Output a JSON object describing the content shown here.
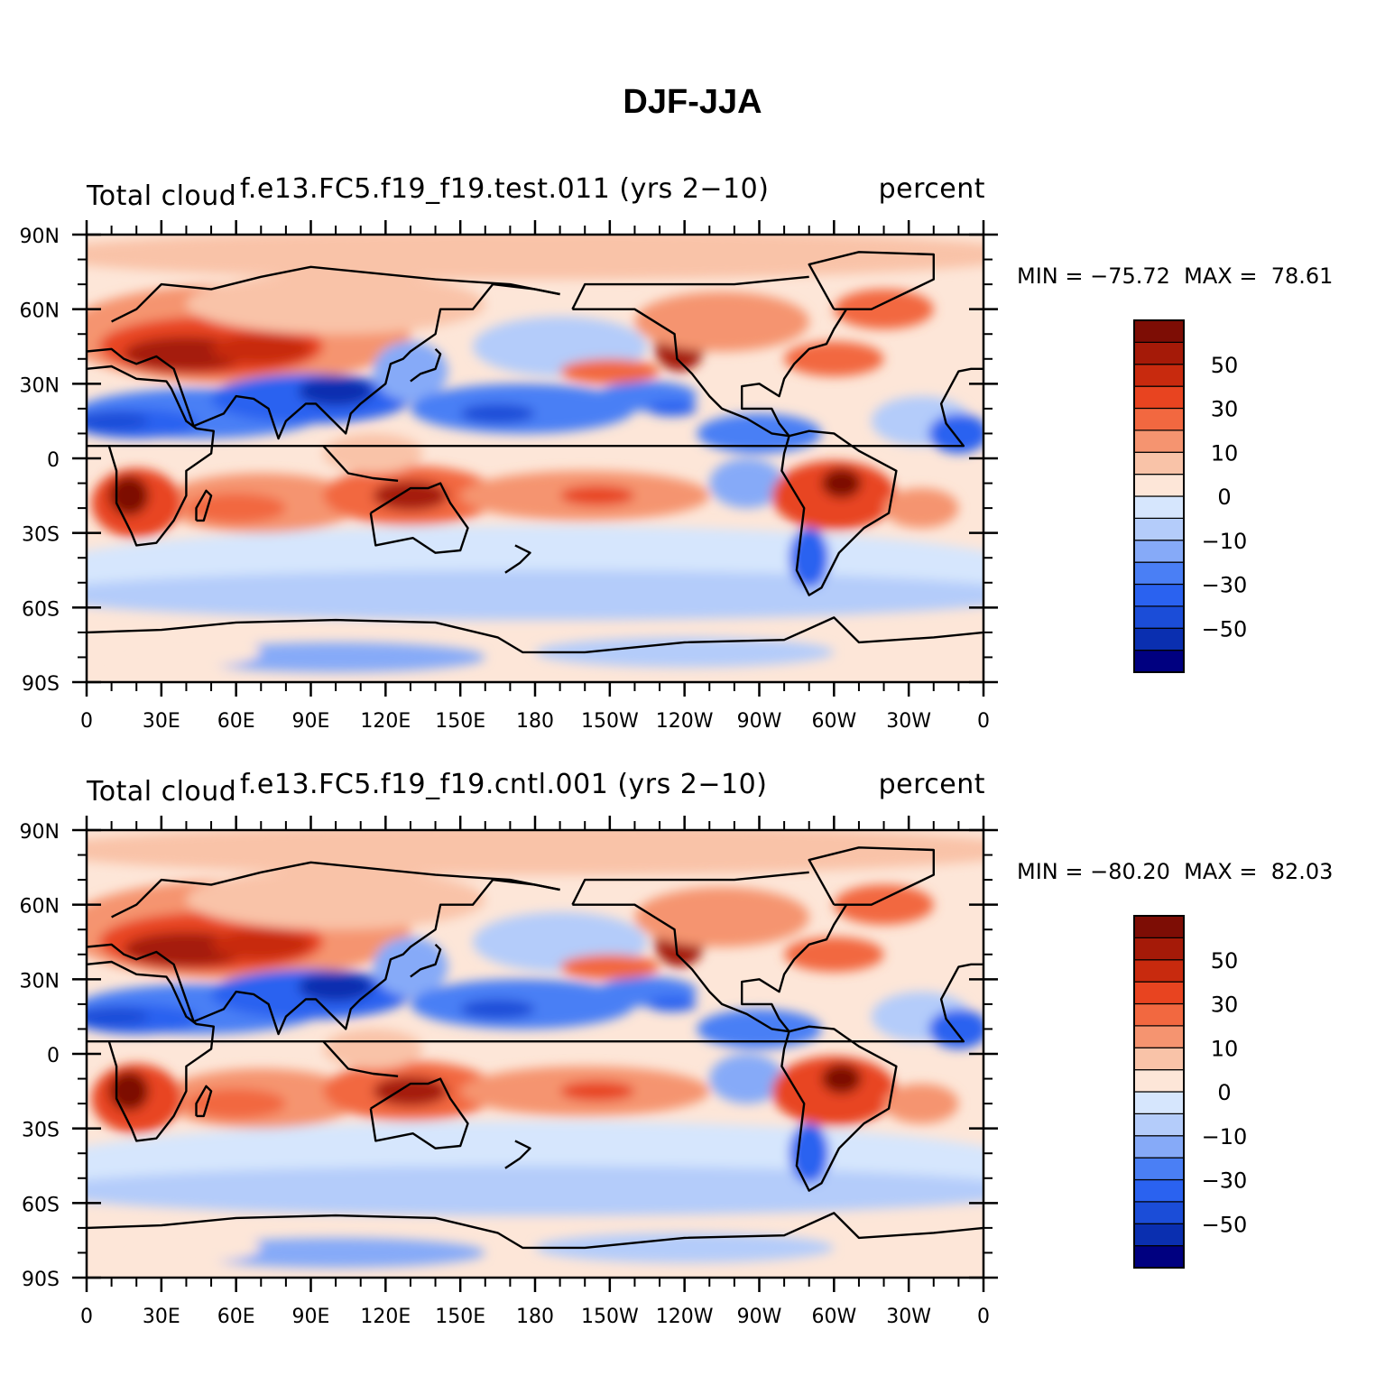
{
  "main_title": "DJF-JJA",
  "panels": [
    {
      "left_label": "Total cloud",
      "center_label": "f.e13.FC5.f19_f19.test.011 (yrs 2−10)",
      "right_label": "percent",
      "min_max": "MIN = −75.72  MAX =  78.61",
      "min": -75.72,
      "max": 78.61
    },
    {
      "left_label": "Total cloud",
      "center_label": "f.e13.FC5.f19_f19.cntl.001 (yrs 2−10)",
      "right_label": "percent",
      "min_max": "MIN = −80.20  MAX =  82.03",
      "min": -80.2,
      "max": 82.03
    }
  ],
  "axes": {
    "lat_labels": [
      "90N",
      "60N",
      "30N",
      "0",
      "30S",
      "60S",
      "90S"
    ],
    "lon_labels": [
      "0",
      "30E",
      "60E",
      "90E",
      "120E",
      "150E",
      "180",
      "150W",
      "120W",
      "90W",
      "60W",
      "30W",
      "0"
    ]
  },
  "colorbar": {
    "labels": [
      "50",
      "30",
      "10",
      "0",
      "−10",
      "−30",
      "−50"
    ],
    "levels": [
      -60,
      -50,
      -40,
      -30,
      -20,
      -10,
      0,
      10,
      20,
      30,
      40,
      50,
      60
    ],
    "colors": [
      "#000080",
      "#0a2fb0",
      "#1b4dd8",
      "#2a62f0",
      "#4a7ff5",
      "#86aaf8",
      "#b4ccfa",
      "#d6e6fd",
      "#fde6d8",
      "#f9c3a8",
      "#f59470",
      "#f26840",
      "#e84420",
      "#c82a0e",
      "#a51a08",
      "#7d0d05"
    ]
  },
  "features": [
    {
      "name": "Eurasia high-latitude cloud increase",
      "sign": "+",
      "strength": 2
    },
    {
      "name": "Asia subtropical cloud decrease",
      "sign": "-",
      "strength": 3
    },
    {
      "name": "Southern Africa cloud increase",
      "sign": "+",
      "strength": 3
    },
    {
      "name": "Australia cloud increase",
      "sign": "+",
      "strength": 2
    },
    {
      "name": "South America cloud increase",
      "sign": "+",
      "strength": 3
    },
    {
      "name": "North Pacific subtropical decrease",
      "sign": "-",
      "strength": 2
    },
    {
      "name": "North Atlantic cloud increase",
      "sign": "+",
      "strength": 2
    }
  ]
}
